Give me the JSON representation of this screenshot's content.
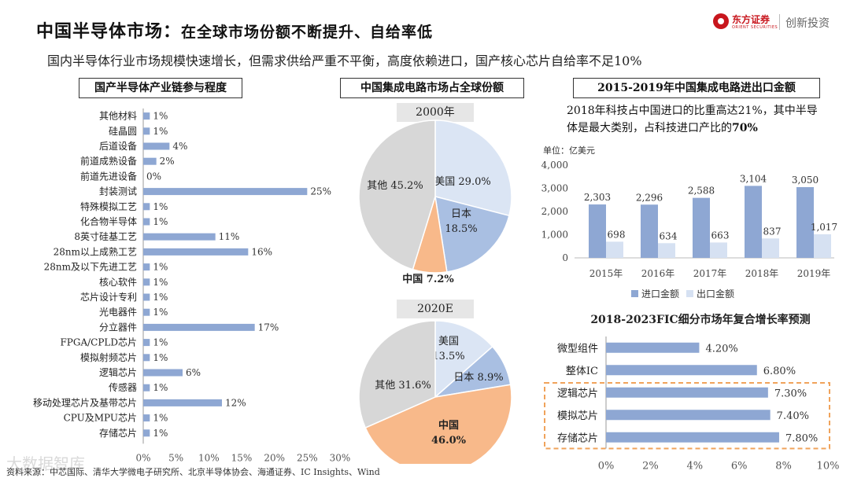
{
  "title": {
    "main": "中国半导体市场：",
    "sub": "在全球市场份额不断提升、自给率低"
  },
  "subtitle": "国内半导体行业市场规模快速增长，但需求供给严重不平衡，高度依赖进口，国产核心芯片自给率不足10%",
  "logo": {
    "name": "东方证券",
    "name_en": "ORIENT SECURITIES",
    "slogan": "创新投资"
  },
  "colors": {
    "bar": "#8ea7d3",
    "bar_light": "#d6e1f2",
    "pie_us": "#dbe5f4",
    "pie_jp": "#a9bfe2",
    "pie_cn": "#f8b98a",
    "pie_other": "#d7d7d7",
    "highlight_box": "#f0a35b"
  },
  "watermark": "大数据智库",
  "source": "资料来源：中芯国际、清华大学微电子研究所、北京半导体协会、海通证券、IC Insights、Wind",
  "chart_data": [
    {
      "type": "bar",
      "orientation": "horizontal",
      "title": "国产半导体产业链参与程度",
      "categories": [
        "其他材料",
        "硅晶圆",
        "后道设备",
        "前道成熟设备",
        "前道先进设备",
        "封装测试",
        "特殊模拟工艺",
        "化合物半导体",
        "8英寸硅基工艺",
        "28nm以上成熟工艺",
        "28nm及以下先进工艺",
        "核心软件",
        "芯片设计专利",
        "光电器件",
        "分立器件",
        "FPGA/CPLD芯片",
        "模拟射频芯片",
        "逻辑芯片",
        "传感器",
        "移动处理芯片及基带芯片",
        "CPU及MPU芯片",
        "存储芯片"
      ],
      "values": [
        1,
        1,
        4,
        2,
        0,
        25,
        1,
        1,
        11,
        16,
        1,
        1,
        1,
        1,
        17,
        1,
        1,
        6,
        1,
        12,
        1,
        1
      ],
      "value_labels": [
        "1%",
        "1%",
        "4%",
        "2%",
        "0%",
        "25%",
        "1%",
        "1%",
        "11%",
        "16%",
        "1%",
        "1%",
        "1%",
        "1%",
        "17%",
        "1%",
        "1%",
        "6%",
        "1%",
        "12%",
        "1%",
        "1%"
      ],
      "xlim": [
        0,
        30
      ],
      "xticks": [
        "0%",
        "5%",
        "10%",
        "15%",
        "20%",
        "25%",
        "30%"
      ]
    },
    {
      "type": "pie",
      "title": "中国集成电路市场占全球份额",
      "charts": [
        {
          "label": "2000年",
          "slices": [
            {
              "name": "美国",
              "value": 29.0,
              "label": "美国 29.0%"
            },
            {
              "name": "日本",
              "value": 18.5,
              "label_a": "日本",
              "label_b": "18.5%"
            },
            {
              "name": "中国",
              "value": 7.2,
              "label": "中国 7.2%"
            },
            {
              "name": "其他",
              "value": 45.2,
              "label": "其他 45.2%"
            }
          ]
        },
        {
          "label": "2020E",
          "slices": [
            {
              "name": "美国",
              "value": 13.5,
              "label_a": "美国",
              "label_b": "13.5%"
            },
            {
              "name": "日本",
              "value": 8.9,
              "label": "日本 8.9%"
            },
            {
              "name": "中国",
              "value": 46.0,
              "label_a": "中国",
              "label_b": "46.0%"
            },
            {
              "name": "其他",
              "value": 31.6,
              "label": "其他 31.6%"
            }
          ]
        }
      ]
    },
    {
      "type": "bar",
      "title": "2015-2019年中国集成电路进出口金额",
      "note_pre": "2018年科技占中国进口的比重高达21%，其中半导体是最大类别，占科技进口产比的",
      "note_bold": "70%",
      "unit": "单位：亿美元",
      "categories": [
        "2015年",
        "2016年",
        "2017年",
        "2018年",
        "2019年"
      ],
      "series": [
        {
          "name": "进口金额",
          "values": [
            2303,
            2296,
            2588,
            3104,
            3050
          ],
          "labels": [
            "2,303",
            "2,296",
            "2,588",
            "3,104",
            "3,050"
          ]
        },
        {
          "name": "出口金额",
          "values": [
            698,
            634,
            663,
            837,
            1017
          ],
          "labels": [
            "698",
            "634",
            "663",
            "837",
            "1,017"
          ]
        }
      ],
      "ylim": [
        0,
        4000
      ],
      "yticks": [
        "0",
        "1,000",
        "2,000",
        "3,000",
        "4,000"
      ]
    },
    {
      "type": "bar",
      "orientation": "horizontal",
      "title": "2018-2023FIC细分市场年复合增长率预测",
      "categories": [
        "微型组件",
        "整体IC",
        "逻辑芯片",
        "模拟芯片",
        "存储芯片"
      ],
      "values": [
        4.2,
        6.8,
        7.3,
        7.4,
        7.8
      ],
      "value_labels": [
        "4.20%",
        "6.80%",
        "7.30%",
        "7.40%",
        "7.80%"
      ],
      "highlighted": [
        "逻辑芯片",
        "模拟芯片",
        "存储芯片"
      ],
      "xlim": [
        0,
        10
      ],
      "xticks": [
        "0%",
        "2%",
        "4%",
        "6%",
        "8%",
        "10%"
      ]
    }
  ]
}
